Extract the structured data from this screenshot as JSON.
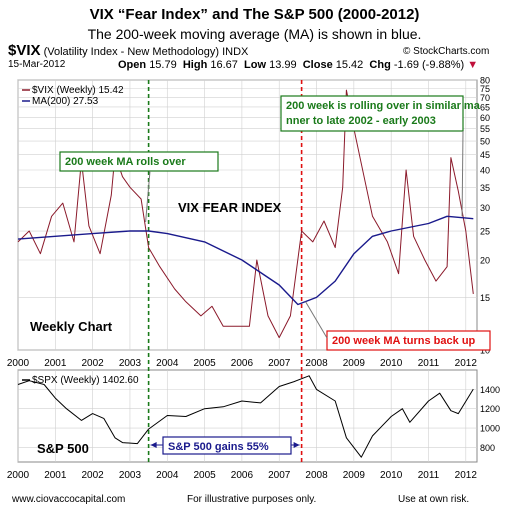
{
  "title": "VIX “Fear Index” and The S&P 500 (2000-2012)",
  "subtitle": "The 200-week moving average (MA) is shown in blue.",
  "header": {
    "symbol": "$VIX",
    "description": "(Volatility Index - New Methodology) INDX",
    "credit": "© StockCharts.com",
    "date": "15-Mar-2012",
    "open_label": "Open",
    "open": "15.79",
    "high_label": "High",
    "high": "16.67",
    "low_label": "Low",
    "low": "13.99",
    "close_label": "Close",
    "close": "15.42",
    "chg_label": "Chg",
    "chg": "-1.69 (-9.88%)"
  },
  "footer": {
    "website": "www.ciovaccocapital.com",
    "disclaimer": "For illustrative purposes only.",
    "risk": "Use at own risk."
  },
  "colors": {
    "price_line": "#8b1a2b",
    "ma_line": "#1a1a8c",
    "spx_line": "#000000",
    "green_annotation": "#1a7a1a",
    "red_annotation": "#e01010",
    "grid": "#d0d0d0"
  },
  "chart_data": [
    {
      "type": "line",
      "panel": "vix",
      "legend": [
        {
          "name": "$VIX (Weekly) 15.42",
          "color": "#8b1a2b"
        },
        {
          "name": "MA(200) 27.53",
          "color": "#1a1a8c"
        }
      ],
      "x_ticks": [
        "2000",
        "2001",
        "2002",
        "2003",
        "2004",
        "2005",
        "2006",
        "2007",
        "2008",
        "2009",
        "2010",
        "2011",
        "2012"
      ],
      "y_ticks": [
        10,
        15,
        20,
        25,
        30,
        35,
        40,
        45,
        50,
        55,
        60,
        65,
        70,
        75,
        80
      ],
      "y_scale": "log",
      "ylim": [
        10,
        80
      ],
      "xlim": [
        2000.0,
        2012.3
      ],
      "series": [
        {
          "name": "$VIX (Weekly) 15.42",
          "x": [
            2000.0,
            2000.3,
            2000.6,
            2000.9,
            2001.2,
            2001.5,
            2001.7,
            2001.9,
            2002.2,
            2002.5,
            2002.6,
            2002.8,
            2003.0,
            2003.3,
            2003.5,
            2003.8,
            2004.2,
            2004.5,
            2004.9,
            2005.2,
            2005.5,
            2005.9,
            2006.2,
            2006.4,
            2006.7,
            2007.0,
            2007.3,
            2007.6,
            2007.9,
            2008.2,
            2008.5,
            2008.7,
            2008.8,
            2009.0,
            2009.2,
            2009.5,
            2009.9,
            2010.2,
            2010.4,
            2010.6,
            2010.9,
            2011.2,
            2011.5,
            2011.6,
            2011.8,
            2012.0,
            2012.2
          ],
          "values": [
            23,
            25,
            21,
            28,
            31,
            23,
            43,
            26,
            21,
            33,
            45,
            38,
            35,
            32,
            22,
            19,
            16,
            14.5,
            13,
            14,
            12,
            12,
            12,
            20,
            13,
            11,
            13,
            25,
            23,
            27,
            22,
            35,
            74,
            55,
            42,
            28,
            23,
            18,
            40,
            24,
            20,
            17,
            19,
            44,
            34,
            25,
            15.4
          ]
        },
        {
          "name": "MA(200) 27.53",
          "x": [
            2000.0,
            2001.0,
            2002.0,
            2003.0,
            2003.5,
            2004.0,
            2005.0,
            2006.0,
            2007.0,
            2007.5,
            2008.0,
            2008.5,
            2009.0,
            2009.5,
            2010.0,
            2011.0,
            2011.5,
            2012.2
          ],
          "values": [
            23.5,
            24,
            24.5,
            25,
            25,
            24.5,
            23,
            20,
            16.5,
            14.2,
            15,
            17,
            21,
            24,
            25,
            26.5,
            28,
            27.5
          ]
        }
      ],
      "annotations": {
        "green_box": "200 week MA rolls over",
        "red_box": "200 week MA turns back up",
        "top_green_box": "200 week is rolling over in similar manner to late 2002 - early 2003",
        "vix_label": "VIX FEAR INDEX",
        "weekly_label": "Weekly Chart"
      }
    },
    {
      "type": "line",
      "panel": "spx",
      "legend": [
        {
          "name": "$SPX (Weekly) 1402.60",
          "color": "#000000"
        }
      ],
      "x_ticks": [
        "2000",
        "2001",
        "2002",
        "2003",
        "2004",
        "2005",
        "2006",
        "2007",
        "2008",
        "2009",
        "2010",
        "2011",
        "2012"
      ],
      "y_ticks": [
        800,
        1000,
        1200,
        1400
      ],
      "ylim": [
        650,
        1600
      ],
      "xlim": [
        2000.0,
        2012.3
      ],
      "series": [
        {
          "name": "$SPX (Weekly) 1402.60",
          "x": [
            2000.0,
            2000.3,
            2000.7,
            2001.0,
            2001.3,
            2001.7,
            2002.0,
            2002.3,
            2002.6,
            2002.8,
            2003.2,
            2003.5,
            2004.0,
            2004.5,
            2005.0,
            2005.5,
            2006.0,
            2006.5,
            2007.0,
            2007.4,
            2007.8,
            2008.0,
            2008.5,
            2008.8,
            2009.2,
            2009.5,
            2010.0,
            2010.3,
            2010.5,
            2011.0,
            2011.3,
            2011.6,
            2011.8,
            2012.2
          ],
          "values": [
            1450,
            1490,
            1450,
            1310,
            1200,
            1080,
            1150,
            1100,
            900,
            850,
            840,
            990,
            1130,
            1120,
            1200,
            1220,
            1280,
            1260,
            1430,
            1480,
            1540,
            1400,
            1280,
            900,
            700,
            920,
            1120,
            1200,
            1060,
            1280,
            1360,
            1180,
            1150,
            1402.6
          ]
        }
      ],
      "annotations": {
        "spx_label": "S&P 500",
        "gain_box": "S&P 500 gains 55%"
      }
    }
  ]
}
